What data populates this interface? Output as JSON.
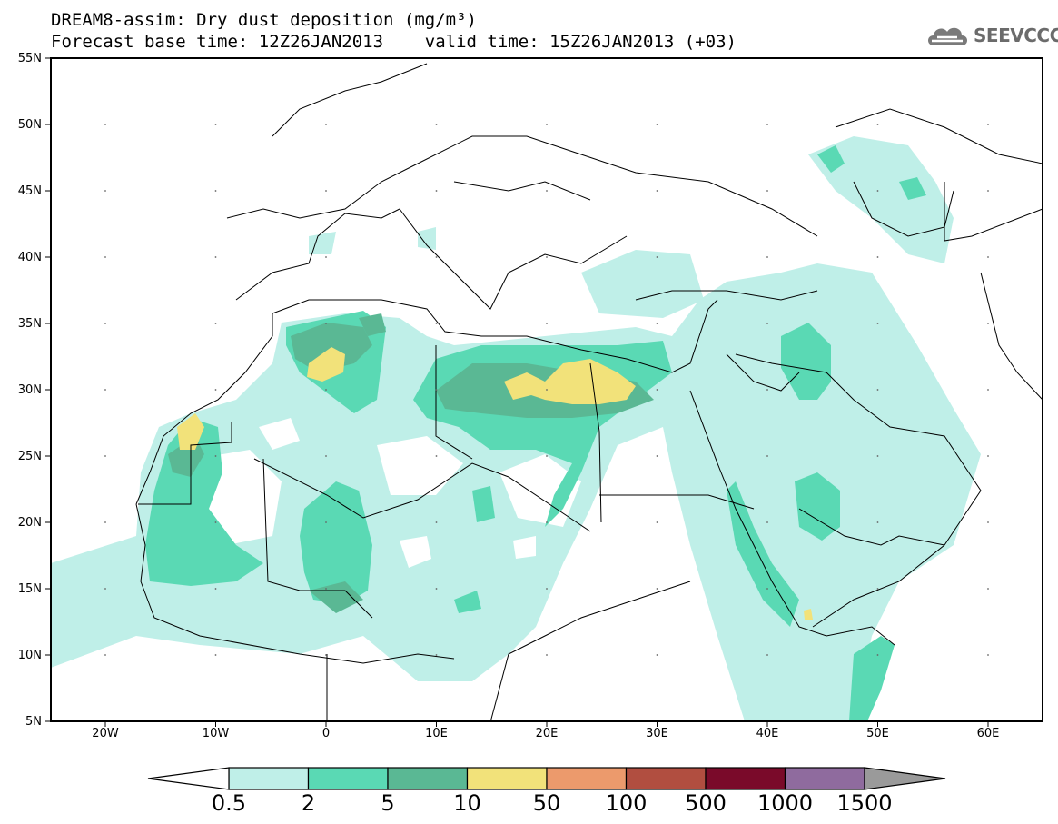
{
  "title_line1": "DREAM8-assim: Dry dust deposition (mg/m³)",
  "title_line2": "Forecast base time: 12Z26JAN2013    valid time: 15Z26JAN2013 (+03)",
  "logo": {
    "text": "SEEVCCC",
    "icon": "cloud-icon"
  },
  "lat_labels": [
    "55N",
    "50N",
    "45N",
    "40N",
    "35N",
    "30N",
    "25N",
    "20N",
    "15N",
    "10N",
    "5N"
  ],
  "lon_labels": [
    "20W",
    "10W",
    "0",
    "10E",
    "20E",
    "30E",
    "40E",
    "50E",
    "60E"
  ],
  "legend": {
    "thresholds": [
      "0.5",
      "2",
      "5",
      "10",
      "50",
      "100",
      "500",
      "1000",
      "1500"
    ],
    "colors": [
      "#bfefe8",
      "#5ad9b4",
      "#5ab894",
      "#f2e27a",
      "#ec9a6c",
      "#b14e40",
      "#7a0a2a",
      "#8f6b9e",
      "#9a9a9a"
    ]
  }
}
